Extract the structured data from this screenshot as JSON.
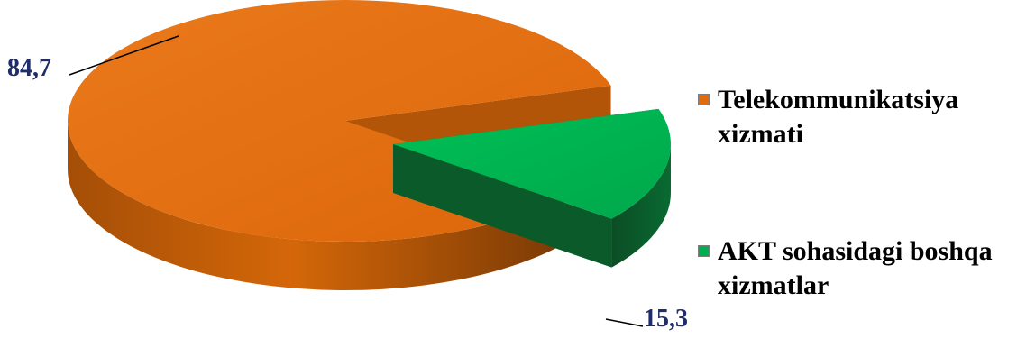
{
  "chart_data": {
    "type": "pie",
    "slices": [
      {
        "label": "Telekommunikatsiya xizmati",
        "value": 84.7,
        "value_label": "84,7",
        "color": "#e26b0a",
        "side_color": "#b35508",
        "exploded": false
      },
      {
        "label": "AKT sohasidagi boshqa xizmatlar",
        "value": 15.3,
        "value_label": "15,3",
        "color": "#00b050",
        "side_color": "#0a5a2a",
        "exploded": true
      }
    ],
    "legend_position": "right",
    "data_label_color": "#1f2d6b"
  },
  "legend": {
    "items": [
      {
        "label": "Telekommunikatsiya xizmati",
        "color": "#e26b0a"
      },
      {
        "label": "AKT sohasidagi boshqa xizmatlar",
        "color": "#00b050"
      }
    ]
  }
}
